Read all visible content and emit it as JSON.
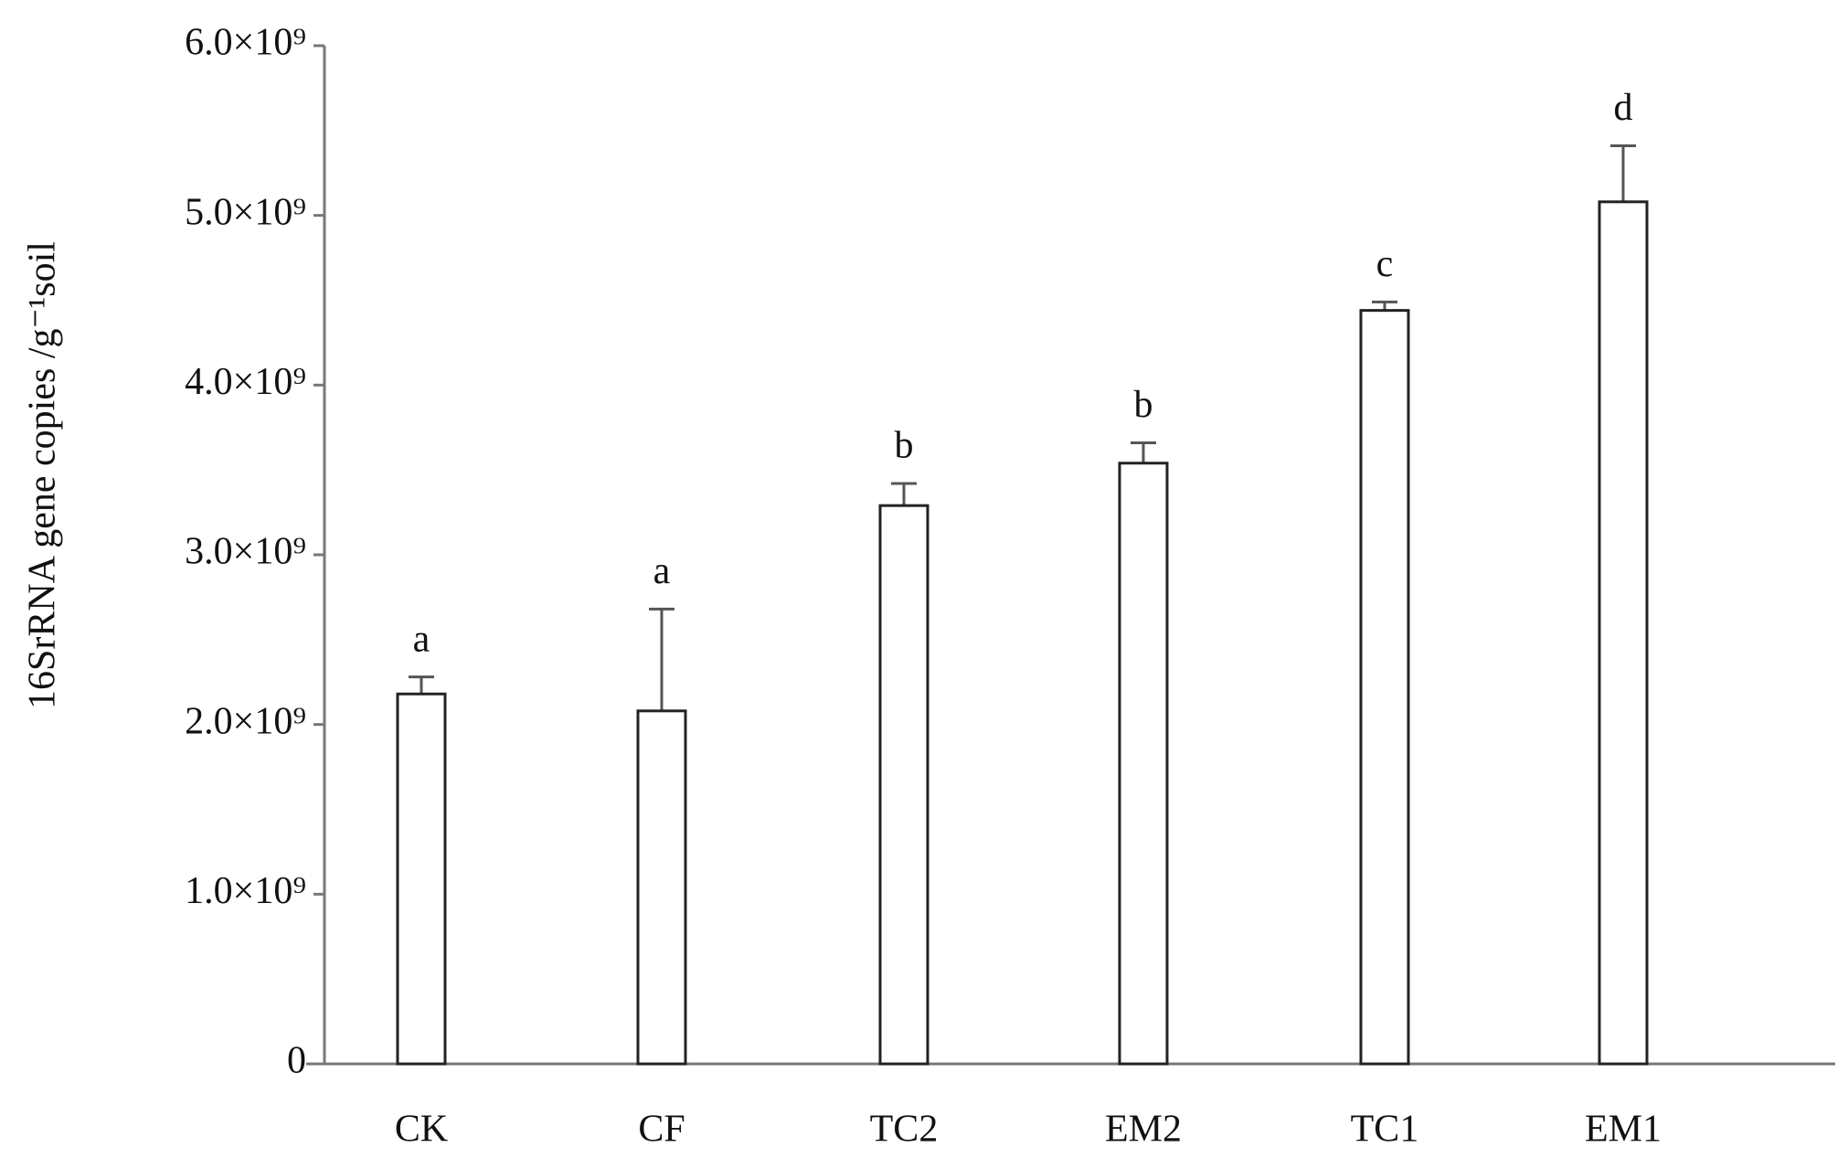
{
  "chart_data": {
    "type": "bar",
    "ylabel": "16SrRNA gene copies /g⁻¹soil",
    "categories": [
      "CK",
      "CF",
      "TC2",
      "EM2",
      "TC1",
      "EM1"
    ],
    "values": [
      2180000000,
      2080000000,
      3290000000,
      3540000000,
      4440000000,
      5080000000
    ],
    "errors": [
      100000000,
      600000000,
      130000000,
      120000000,
      50000000,
      330000000
    ],
    "significance": [
      "a",
      "a",
      "b",
      "b",
      "c",
      "d"
    ],
    "color": "#ffffff",
    "ylim": [
      0,
      6000000000
    ],
    "yticks": [
      0,
      {
        "value": 1000000000,
        "label": "1.0×10⁹"
      },
      {
        "value": 2000000000,
        "label": "2.0×10⁹"
      },
      {
        "value": 3000000000,
        "label": "3.0×10⁹"
      },
      {
        "value": 4000000000,
        "label": "4.0×10⁹"
      },
      {
        "value": 5000000000,
        "label": "5.0×10⁹"
      },
      {
        "value": 6000000000,
        "label": "6.0×10⁹"
      }
    ],
    "grid": false
  }
}
